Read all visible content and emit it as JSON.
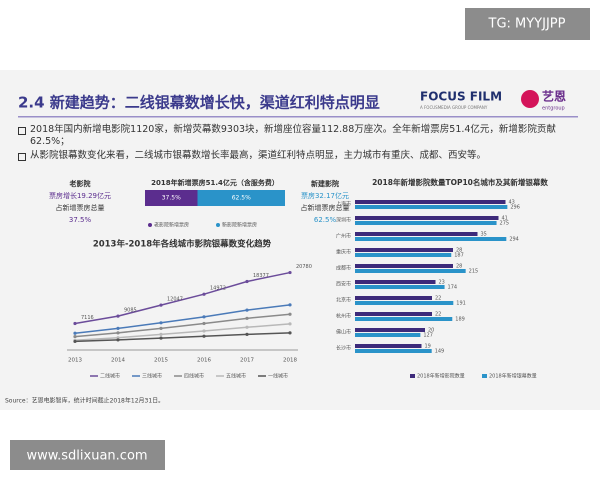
{
  "watermark": "TG: MYYJJPP",
  "header": {
    "title": "2.4 新建趋势：二线银幕数增长快，渠道红利特点明显",
    "logo_main": "FOCUS FILM",
    "logo_sub": "A FOCUSMEDIA GROUP COMPANY",
    "logo_cn": "艺恩",
    "logo_en": "entgroup"
  },
  "bullets": [
    "2018年国内新增电影院1120家，新增荧幕数9303块，新增座位容量112.88万座次。全年新增票房51.4亿元，新增影院贡献 62.5%；",
    "从影院银幕数变化来看，二线城市银幕数增长率最高，渠道红利特点明显，主力城市有重庆、成都、西安等。"
  ],
  "chart_data": [
    {
      "type": "stacked_bar",
      "title": "2018年新增票房51.4亿元（含服务费）",
      "series": [
        {
          "name": "老影院新增票房",
          "color": "#5b2d8e",
          "values": [
            37.5
          ],
          "value_labels": [
            "37.5%"
          ]
        },
        {
          "name": "新影院新增票房",
          "color": "#2a93c9",
          "values": [
            62.5
          ],
          "value_labels": [
            "62.5%"
          ]
        }
      ],
      "xlim": [
        0,
        100
      ],
      "annotations": {
        "left": [
          "老影院",
          "票房增长19.29亿元",
          "占新增票房总量",
          "37.5%"
        ],
        "right": [
          "新建影院",
          "票房32.17亿元",
          "占新增票房总量",
          "62.5%"
        ]
      }
    },
    {
      "type": "line",
      "title": "2013年-2018年各线城市影院银幕数变化趋势",
      "categories": [
        "2013",
        "2014",
        "2015",
        "2016",
        "2017",
        "2018"
      ],
      "ylim": [
        0,
        22000
      ],
      "series": [
        {
          "name": "二线城市",
          "color": "#6b4c9a",
          "values": [
            7116,
            9085,
            12047,
            14972,
            18377,
            20780
          ],
          "show_values": true
        },
        {
          "name": "三线城市",
          "color": "#4a7ab8",
          "values": [
            4500,
            5800,
            7300,
            8900,
            10700,
            12100
          ]
        },
        {
          "name": "四线城市",
          "color": "#8a8a8a",
          "values": [
            3600,
            4600,
            5800,
            7100,
            8500,
            9600
          ]
        },
        {
          "name": "五线城市",
          "color": "#b8b8b8",
          "values": [
            2600,
            3300,
            4200,
            5100,
            6100,
            7000
          ]
        },
        {
          "name": "一线城市",
          "color": "#555555",
          "values": [
            2300,
            2700,
            3200,
            3700,
            4200,
            4600
          ]
        }
      ]
    },
    {
      "type": "hbar",
      "title": "2018年新增影院数量TOP10名城市及其新增银幕数",
      "categories": [
        "上海市",
        "深圳市",
        "广州市",
        "重庆市",
        "成都市",
        "西安市",
        "北京市",
        "杭州市",
        "佛山市",
        "长沙市"
      ],
      "series": [
        {
          "name": "2018年新增影院数量",
          "color": "#3d2a7a",
          "values": [
            43,
            41,
            35,
            28,
            28,
            23,
            22,
            22,
            20,
            19
          ],
          "xlim": [
            0,
            50
          ]
        },
        {
          "name": "2018年新增银幕数量",
          "color": "#2a93c9",
          "values": [
            296,
            275,
            294,
            187,
            215,
            174,
            191,
            189,
            127,
            149
          ],
          "xlim": [
            0,
            340
          ]
        }
      ]
    }
  ],
  "source": "Source：艺恩电影智库，统计时间截止2018年12月31日。",
  "footer_url": "www.sdlixuan.com"
}
